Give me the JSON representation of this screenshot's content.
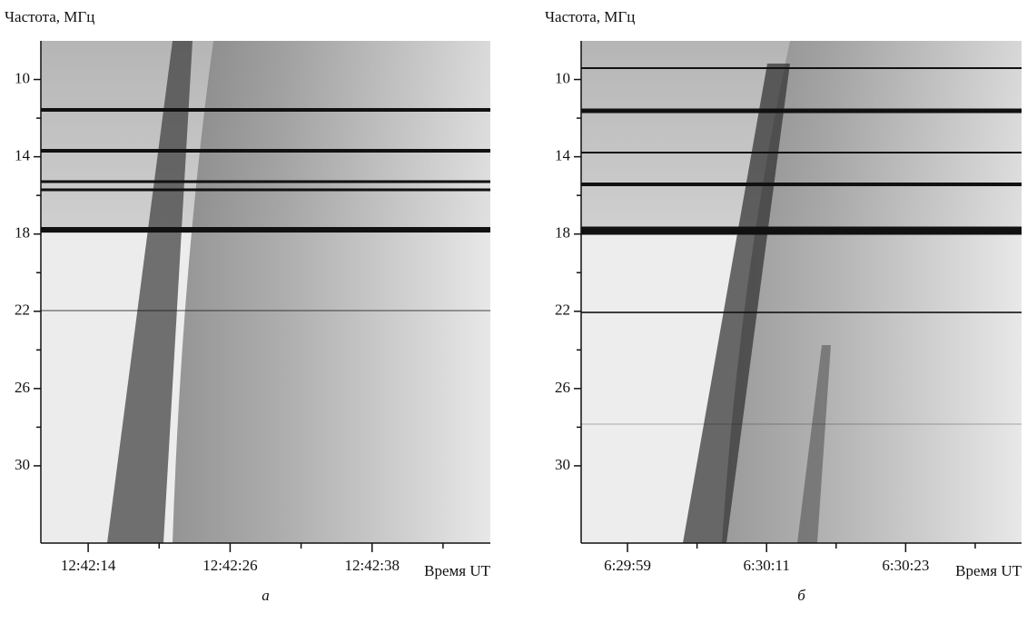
{
  "chart_data": [
    {
      "type": "spectrogram",
      "ylabel": "Частота, МГц",
      "xlabel": "Время UT",
      "panel_label": "а",
      "ylim": [
        34,
        8
      ],
      "yticks": [
        10,
        14,
        18,
        22,
        26,
        30
      ],
      "xlim": [
        "12:42:10",
        "12:42:48"
      ],
      "xticks": [
        "12:42:14",
        "12:42:26",
        "12:42:38"
      ]
    },
    {
      "type": "spectrogram",
      "ylabel": "Частота, МГц",
      "xlabel": "Время UT",
      "panel_label": "б",
      "ylim": [
        34,
        8
      ],
      "yticks": [
        10,
        14,
        18,
        22,
        26,
        30
      ],
      "xlim": [
        "6:29:55",
        "6:30:33"
      ],
      "xticks": [
        "6:29:59",
        "6:30:11",
        "6:30:23"
      ]
    }
  ]
}
